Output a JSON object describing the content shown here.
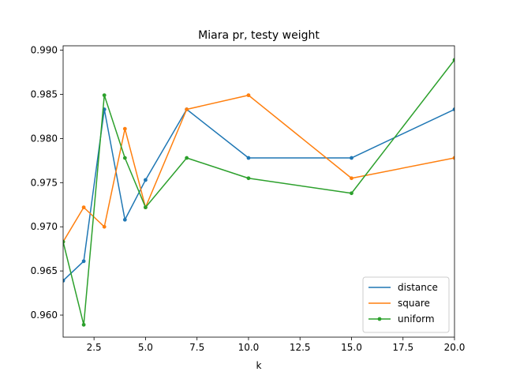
{
  "chart_data": {
    "type": "line",
    "title": "Miara pr, testy weight",
    "xlabel": "k",
    "ylabel": "",
    "xlim": [
      1,
      20
    ],
    "ylim": [
      0.9575,
      0.9905
    ],
    "x_ticks": [
      2.5,
      5.0,
      7.5,
      10.0,
      12.5,
      15.0,
      17.5,
      20.0
    ],
    "x_tick_labels": [
      "2.5",
      "5.0",
      "7.5",
      "10.0",
      "12.5",
      "15.0",
      "17.5",
      "20.0"
    ],
    "y_ticks": [
      0.96,
      0.965,
      0.97,
      0.975,
      0.98,
      0.985,
      0.99
    ],
    "y_tick_labels": [
      "0.960",
      "0.965",
      "0.970",
      "0.975",
      "0.980",
      "0.985",
      "0.990"
    ],
    "grid": false,
    "legend_position": "lower-right",
    "x": [
      1,
      2,
      3,
      4,
      5,
      7,
      10,
      15,
      20
    ],
    "series": [
      {
        "name": "distance",
        "color": "#1f77b4",
        "values": [
          0.9639,
          0.9661,
          0.9833,
          0.9708,
          0.9753,
          0.9833,
          0.9778,
          0.9778,
          0.9833
        ]
      },
      {
        "name": "square",
        "color": "#ff7f0e",
        "values": [
          0.9683,
          0.9722,
          0.97,
          0.9811,
          0.9722,
          0.9833,
          0.9849,
          0.9755,
          0.9778
        ]
      },
      {
        "name": "uniform",
        "color": "#2ca02c",
        "values": [
          0.9683,
          0.9589,
          0.9849,
          0.9778,
          0.9722,
          0.9778,
          0.9755,
          0.9738,
          0.9889
        ]
      }
    ]
  }
}
